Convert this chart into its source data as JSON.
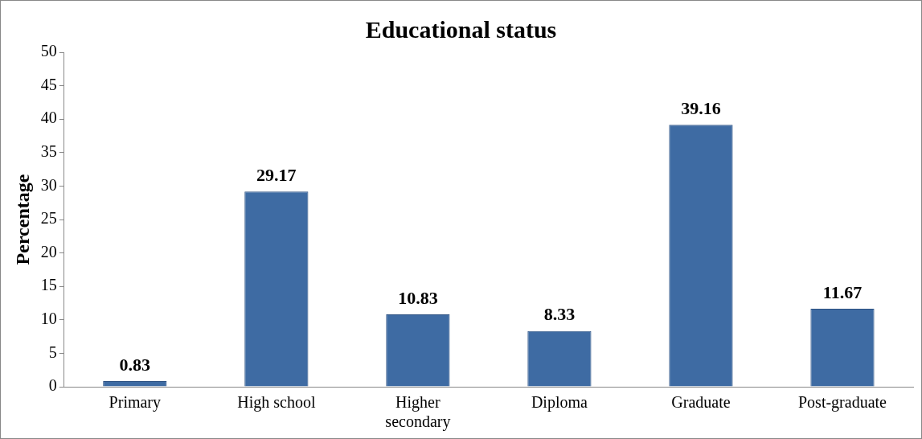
{
  "chart_data": {
    "type": "bar",
    "title": "Educational status",
    "ylabel": "Percentage",
    "categories": [
      "Primary",
      "High school",
      "Higher secondary",
      "Diploma",
      "Graduate",
      "Post-graduate"
    ],
    "values": [
      0.83,
      29.17,
      10.83,
      8.33,
      39.16,
      11.67
    ],
    "color": "#3e6ba3",
    "ylim": [
      0,
      50
    ],
    "yticks": [
      0,
      5,
      10,
      15,
      20,
      25,
      30,
      35,
      40,
      45,
      50
    ],
    "grid": false,
    "legend": false,
    "data_labels": true
  }
}
